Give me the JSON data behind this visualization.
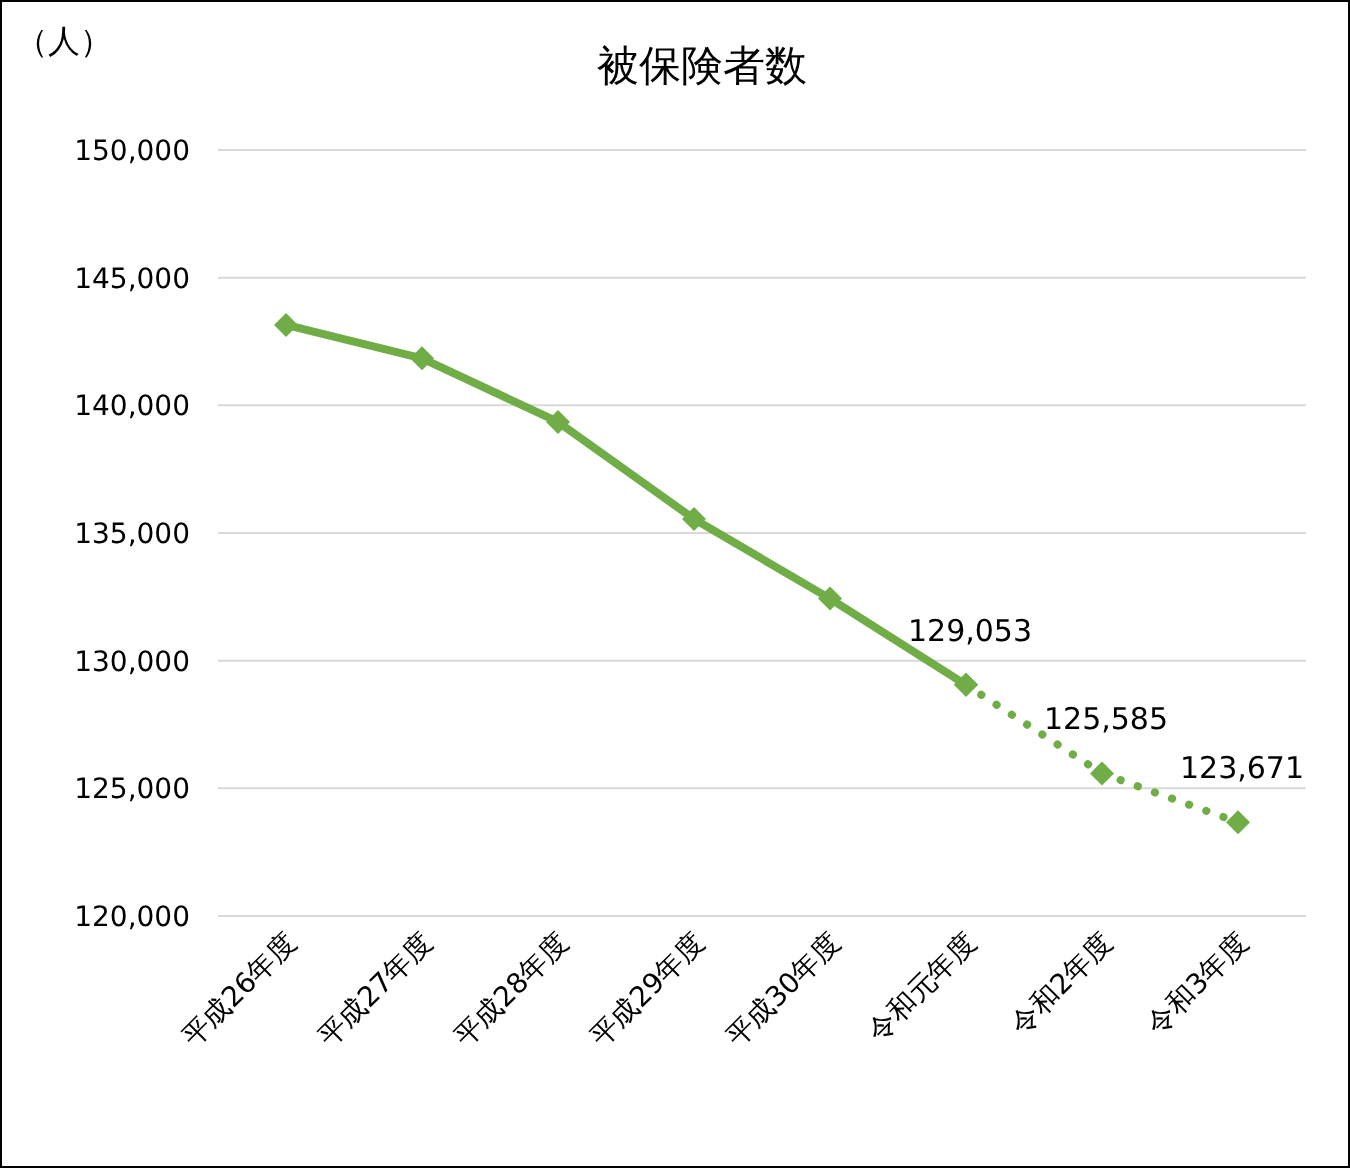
{
  "chart_data": {
    "type": "line",
    "title": "被保険者数",
    "ylabel": "（人）",
    "categories": [
      "平成26年度",
      "平成27年度",
      "平成28年度",
      "平成29年度",
      "平成30年度",
      "令和元年度",
      "令和2年度",
      "令和3年度"
    ],
    "series": [
      {
        "color": "#70ad47",
        "line_style": "solid",
        "values": [
          143150,
          141840,
          139350,
          135550,
          132430,
          129053,
          null,
          null
        ]
      },
      {
        "color": "#70ad47",
        "line_style": "dotted",
        "values": [
          null,
          null,
          null,
          null,
          null,
          129053,
          125585,
          123671
        ],
        "value_labels": [
          null,
          null,
          null,
          null,
          null,
          "129,053",
          "125,585",
          "123,671"
        ]
      }
    ],
    "ylim": [
      120000,
      150000
    ],
    "yticks": [
      {
        "value": 120000,
        "label": "120,000"
      },
      {
        "value": 125000,
        "label": "125,000"
      },
      {
        "value": 130000,
        "label": "130,000"
      },
      {
        "value": 135000,
        "label": "135,000"
      },
      {
        "value": 140000,
        "label": "140,000"
      },
      {
        "value": 145000,
        "label": "145,000"
      },
      {
        "value": 150000,
        "label": "150,000"
      }
    ],
    "grid": "y",
    "marker": "diamond"
  }
}
